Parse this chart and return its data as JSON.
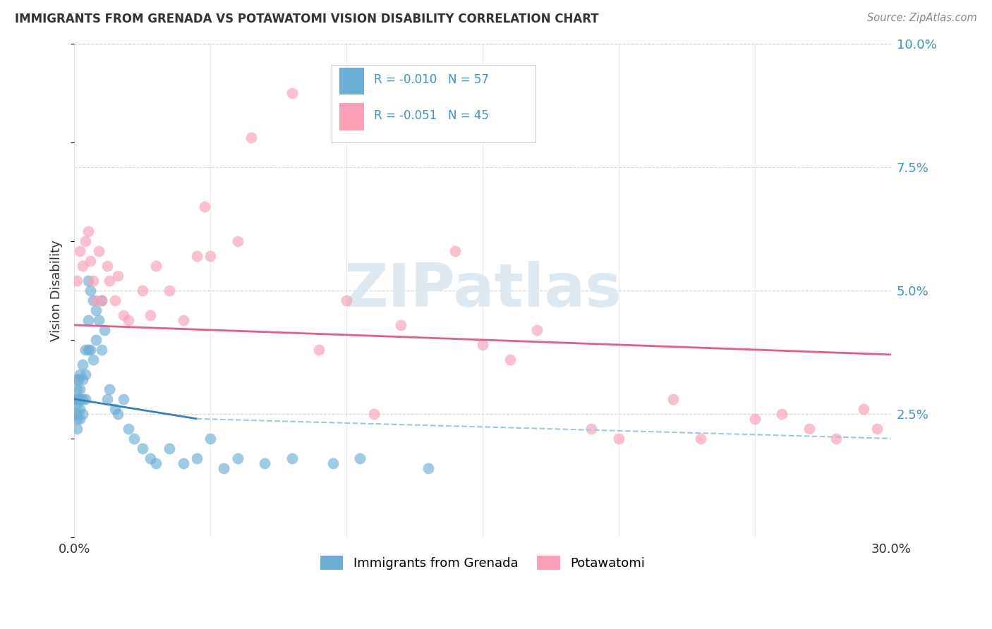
{
  "title": "IMMIGRANTS FROM GRENADA VS POTAWATOMI VISION DISABILITY CORRELATION CHART",
  "source": "Source: ZipAtlas.com",
  "ylabel": "Vision Disability",
  "legend_label1": "Immigrants from Grenada",
  "legend_label2": "Potawatomi",
  "color_blue": "#6baed6",
  "color_pink": "#fa9fb5",
  "color_blue_line": "#3182bd",
  "color_pink_line": "#e85c8a",
  "color_dashed": "#9ecae1",
  "xlim": [
    0.0,
    0.3
  ],
  "ylim": [
    0.0,
    0.1
  ],
  "xticks": [
    0.0,
    0.05,
    0.1,
    0.15,
    0.2,
    0.25,
    0.3
  ],
  "yticks_right": [
    0.025,
    0.05,
    0.075,
    0.1
  ],
  "ytick_labels_right": [
    "2.5%",
    "5.0%",
    "7.5%",
    "10.0%"
  ],
  "blue_x": [
    0.0005,
    0.0005,
    0.001,
    0.001,
    0.001,
    0.001,
    0.001,
    0.001,
    0.001,
    0.0015,
    0.0015,
    0.002,
    0.002,
    0.002,
    0.002,
    0.002,
    0.003,
    0.003,
    0.003,
    0.003,
    0.004,
    0.004,
    0.004,
    0.005,
    0.005,
    0.005,
    0.006,
    0.006,
    0.007,
    0.007,
    0.008,
    0.008,
    0.009,
    0.01,
    0.01,
    0.011,
    0.012,
    0.013,
    0.015,
    0.016,
    0.018,
    0.02,
    0.022,
    0.025,
    0.028,
    0.03,
    0.035,
    0.04,
    0.045,
    0.05,
    0.055,
    0.06,
    0.07,
    0.08,
    0.095,
    0.105,
    0.13
  ],
  "blue_y": [
    0.028,
    0.025,
    0.032,
    0.03,
    0.028,
    0.027,
    0.025,
    0.024,
    0.022,
    0.032,
    0.028,
    0.033,
    0.03,
    0.028,
    0.026,
    0.024,
    0.035,
    0.032,
    0.028,
    0.025,
    0.038,
    0.033,
    0.028,
    0.052,
    0.044,
    0.038,
    0.05,
    0.038,
    0.048,
    0.036,
    0.046,
    0.04,
    0.044,
    0.048,
    0.038,
    0.042,
    0.028,
    0.03,
    0.026,
    0.025,
    0.028,
    0.022,
    0.02,
    0.018,
    0.016,
    0.015,
    0.018,
    0.015,
    0.016,
    0.02,
    0.014,
    0.016,
    0.015,
    0.016,
    0.015,
    0.016,
    0.014
  ],
  "pink_x": [
    0.001,
    0.002,
    0.003,
    0.004,
    0.005,
    0.006,
    0.007,
    0.008,
    0.009,
    0.01,
    0.012,
    0.013,
    0.015,
    0.016,
    0.018,
    0.02,
    0.025,
    0.028,
    0.03,
    0.035,
    0.04,
    0.045,
    0.048,
    0.05,
    0.06,
    0.065,
    0.08,
    0.09,
    0.1,
    0.11,
    0.12,
    0.14,
    0.15,
    0.16,
    0.17,
    0.19,
    0.2,
    0.22,
    0.23,
    0.25,
    0.26,
    0.27,
    0.28,
    0.29,
    0.295
  ],
  "pink_y": [
    0.052,
    0.058,
    0.055,
    0.06,
    0.062,
    0.056,
    0.052,
    0.048,
    0.058,
    0.048,
    0.055,
    0.052,
    0.048,
    0.053,
    0.045,
    0.044,
    0.05,
    0.045,
    0.055,
    0.05,
    0.044,
    0.057,
    0.067,
    0.057,
    0.06,
    0.081,
    0.09,
    0.038,
    0.048,
    0.025,
    0.043,
    0.058,
    0.039,
    0.036,
    0.042,
    0.022,
    0.02,
    0.028,
    0.02,
    0.024,
    0.025,
    0.022,
    0.02,
    0.026,
    0.022
  ],
  "blue_line_x0": 0.0,
  "blue_line_x1": 0.045,
  "blue_line_y0": 0.028,
  "blue_line_y1": 0.024,
  "pink_line_x0": 0.0,
  "pink_line_x1": 0.3,
  "pink_line_y0": 0.043,
  "pink_line_y1": 0.037,
  "dashed_line_x0": 0.045,
  "dashed_line_x1": 0.3,
  "dashed_line_y0": 0.024,
  "dashed_line_y1": 0.02,
  "background_color": "#ffffff",
  "grid_color": "#cccccc",
  "text_color_blue": "#4292c6",
  "text_color_dark": "#333333"
}
